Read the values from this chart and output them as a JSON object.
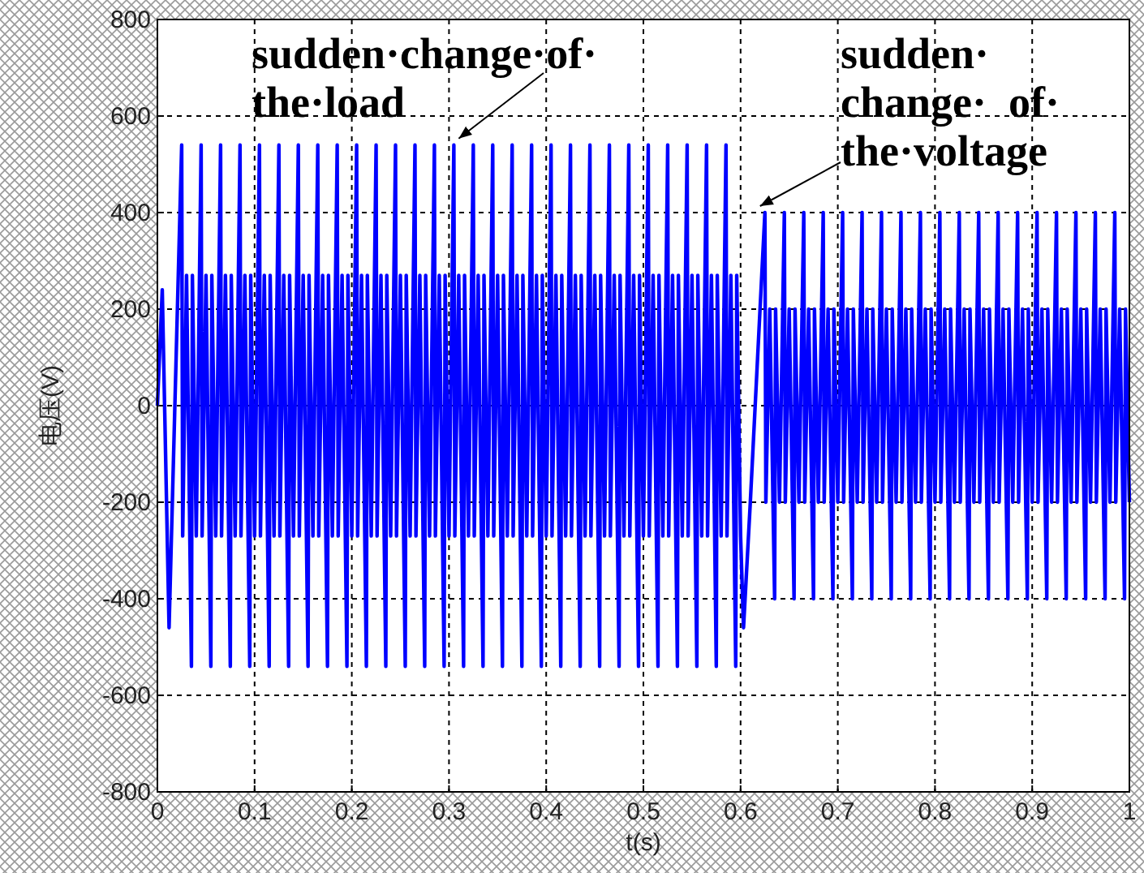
{
  "chart_data": {
    "type": "line",
    "xlabel": "t(s)",
    "ylabel": "电压(V)",
    "xlim": [
      0,
      1
    ],
    "ylim": [
      -800,
      800
    ],
    "xticks": [
      0,
      0.1,
      0.2,
      0.3,
      0.4,
      0.5,
      0.6,
      0.7,
      0.8,
      0.9,
      1
    ],
    "yticks": [
      -800,
      -600,
      -400,
      -200,
      0,
      200,
      400,
      600,
      800
    ],
    "grid": true,
    "annotations": [
      {
        "text": "sudden·change·of·\nthe·load",
        "x": 0.31,
        "y": 540
      },
      {
        "text": "sudden·\nchange·  of·\nthe·voltage",
        "x": 0.62,
        "y": 400
      }
    ],
    "series": [
      {
        "color": "#0000ff",
        "x": [
          0,
          0.005,
          0.012,
          0.025,
          0.026,
          0.03,
          0.035,
          0.036,
          0.04,
          0.045,
          0.046,
          0.05,
          0.055,
          0.056,
          0.06,
          0.065,
          0.066,
          0.07,
          0.075,
          0.076,
          0.08,
          0.085,
          0.086,
          0.09,
          0.095,
          0.096,
          0.1,
          0.105,
          0.106,
          0.11,
          0.115,
          0.116,
          0.12,
          0.125,
          0.126,
          0.13,
          0.135,
          0.136,
          0.14,
          0.145,
          0.146,
          0.15,
          0.155,
          0.156,
          0.16,
          0.165,
          0.166,
          0.17,
          0.175,
          0.176,
          0.18,
          0.185,
          0.186,
          0.19,
          0.195,
          0.196,
          0.2,
          0.205,
          0.206,
          0.21,
          0.215,
          0.216,
          0.22,
          0.225,
          0.226,
          0.23,
          0.235,
          0.236,
          0.24,
          0.245,
          0.246,
          0.25,
          0.255,
          0.256,
          0.26,
          0.265,
          0.266,
          0.27,
          0.275,
          0.276,
          0.28,
          0.285,
          0.286,
          0.29,
          0.295,
          0.296,
          0.3,
          0.305,
          0.306,
          0.31,
          0.315,
          0.316,
          0.32,
          0.325,
          0.326,
          0.33,
          0.335,
          0.336,
          0.34,
          0.345,
          0.346,
          0.35,
          0.355,
          0.356,
          0.36,
          0.365,
          0.366,
          0.37,
          0.375,
          0.376,
          0.38,
          0.385,
          0.386,
          0.39,
          0.395,
          0.396,
          0.4,
          0.405,
          0.406,
          0.41,
          0.415,
          0.416,
          0.42,
          0.425,
          0.426,
          0.43,
          0.435,
          0.436,
          0.44,
          0.445,
          0.446,
          0.45,
          0.455,
          0.456,
          0.46,
          0.465,
          0.466,
          0.47,
          0.475,
          0.476,
          0.48,
          0.485,
          0.486,
          0.49,
          0.495,
          0.496,
          0.5,
          0.505,
          0.506,
          0.51,
          0.515,
          0.516,
          0.52,
          0.525,
          0.526,
          0.53,
          0.535,
          0.536,
          0.54,
          0.545,
          0.546,
          0.55,
          0.555,
          0.556,
          0.56,
          0.565,
          0.566,
          0.57,
          0.575,
          0.576,
          0.58,
          0.585,
          0.586,
          0.59,
          0.595,
          0.596,
          0.6,
          0.603,
          0.61,
          0.625,
          0.626,
          0.63,
          0.635,
          0.636,
          0.64,
          0.645,
          0.646,
          0.65,
          0.655,
          0.656,
          0.66,
          0.665,
          0.666,
          0.67,
          0.675,
          0.676,
          0.68,
          0.685,
          0.686,
          0.69,
          0.695,
          0.696,
          0.7,
          0.705,
          0.706,
          0.71,
          0.715,
          0.716,
          0.72,
          0.725,
          0.726,
          0.73,
          0.735,
          0.736,
          0.74,
          0.745,
          0.746,
          0.75,
          0.755,
          0.756,
          0.76,
          0.765,
          0.766,
          0.77,
          0.775,
          0.776,
          0.78,
          0.785,
          0.786,
          0.79,
          0.795,
          0.796,
          0.8,
          0.805,
          0.806,
          0.81,
          0.815,
          0.816,
          0.82,
          0.825,
          0.826,
          0.83,
          0.835,
          0.836,
          0.84,
          0.845,
          0.846,
          0.85,
          0.855,
          0.856,
          0.86,
          0.865,
          0.866,
          0.87,
          0.875,
          0.876,
          0.88,
          0.885,
          0.886,
          0.89,
          0.895,
          0.896,
          0.9,
          0.905,
          0.906,
          0.91,
          0.915,
          0.916,
          0.92,
          0.925,
          0.926,
          0.93,
          0.935,
          0.936,
          0.94,
          0.945,
          0.946,
          0.95,
          0.955,
          0.956,
          0.96,
          0.965,
          0.966,
          0.97,
          0.975,
          0.976,
          0.98,
          0.985,
          0.986,
          0.99,
          0.995,
          0.996,
          1
        ],
        "values": [
          0,
          240,
          -460,
          540,
          -270,
          270,
          -540,
          270,
          -270,
          540,
          -270,
          270,
          -540,
          270,
          -270,
          540,
          -270,
          270,
          -540,
          270,
          -270,
          540,
          -270,
          270,
          -540,
          270,
          -270,
          540,
          -270,
          270,
          -540,
          270,
          -270,
          540,
          -270,
          270,
          -540,
          270,
          -270,
          540,
          -270,
          270,
          -540,
          270,
          -270,
          540,
          -270,
          270,
          -540,
          270,
          -270,
          540,
          -270,
          270,
          -540,
          270,
          -270,
          540,
          -270,
          270,
          -540,
          270,
          -270,
          540,
          -270,
          270,
          -540,
          270,
          -270,
          540,
          -270,
          270,
          -540,
          270,
          -270,
          540,
          -270,
          270,
          -540,
          270,
          -270,
          540,
          -270,
          270,
          -540,
          270,
          -270,
          540,
          -270,
          270,
          -540,
          270,
          -270,
          540,
          -270,
          270,
          -540,
          270,
          -270,
          540,
          -270,
          270,
          -540,
          270,
          -270,
          540,
          -270,
          270,
          -540,
          270,
          -270,
          540,
          -270,
          270,
          -540,
          270,
          -270,
          540,
          -270,
          270,
          -540,
          270,
          -270,
          540,
          -270,
          270,
          -540,
          270,
          -270,
          540,
          -270,
          270,
          -540,
          270,
          -270,
          540,
          -270,
          270,
          -540,
          270,
          -270,
          540,
          -270,
          270,
          -540,
          270,
          -270,
          540,
          -270,
          270,
          -540,
          270,
          -270,
          540,
          -270,
          270,
          -540,
          270,
          -270,
          540,
          -270,
          270,
          -540,
          270,
          -270,
          540,
          -270,
          270,
          -540,
          270,
          -270,
          540,
          -270,
          270,
          -540,
          270,
          -270,
          -460,
          -200,
          400,
          -200,
          200,
          -400,
          200,
          -200,
          400,
          -200,
          200,
          -400,
          200,
          -200,
          400,
          -200,
          200,
          -400,
          200,
          -200,
          400,
          -200,
          200,
          -400,
          200,
          -200,
          400,
          -200,
          200,
          -400,
          200,
          -200,
          400,
          -200,
          200,
          -400,
          200,
          -200,
          400,
          -200,
          200,
          -400,
          200,
          -200,
          400,
          -200,
          200,
          -400,
          200,
          -200,
          400,
          -200,
          200,
          -400,
          200,
          -200,
          400,
          -200,
          200,
          -400,
          200,
          -200,
          400,
          -200,
          200,
          -400,
          200,
          -200,
          400,
          -200,
          200,
          -400,
          200,
          -200,
          400,
          -200,
          200,
          -400,
          200,
          -200,
          400,
          -200,
          200,
          -400,
          200,
          -200,
          400,
          -200,
          200,
          -400,
          200,
          -200,
          400,
          -200,
          200,
          -400,
          200,
          -200,
          400,
          -200,
          200,
          -400,
          200,
          -200,
          400,
          -200,
          200,
          -400,
          200,
          -200,
          400,
          -200,
          200,
          -400,
          200,
          -200
        ]
      }
    ]
  }
}
